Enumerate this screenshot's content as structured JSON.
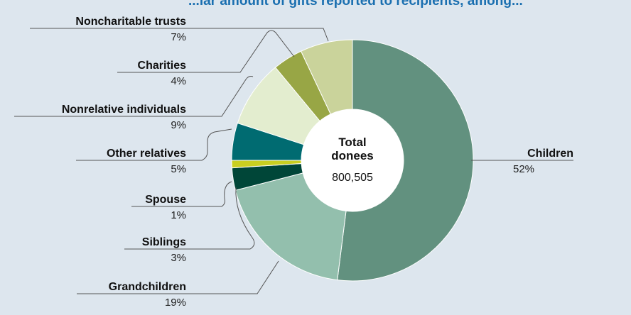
{
  "chart_data": {
    "type": "pie",
    "title": "...lar amount of gifts reported to recipients, among...",
    "center_label": {
      "title": "Total donees",
      "title_lines": [
        "Total",
        "donees"
      ],
      "total": "800,505"
    },
    "slices": [
      {
        "label": "Children",
        "percent": "52%",
        "value": 52,
        "color": "#62917f"
      },
      {
        "label": "Grandchildren",
        "percent": "19%",
        "value": 19,
        "color": "#93bfad"
      },
      {
        "label": "Siblings",
        "percent": "3%",
        "value": 3,
        "color": "#004638"
      },
      {
        "label": "Spouse",
        "percent": "1%",
        "value": 1,
        "color": "#c9cf21"
      },
      {
        "label": "Other relatives",
        "percent": "5%",
        "value": 5,
        "color": "#006b71"
      },
      {
        "label": "Nonrelative individuals",
        "percent": "9%",
        "value": 9,
        "color": "#e3edcf"
      },
      {
        "label": "Charities",
        "percent": "4%",
        "value": 4,
        "color": "#98a645"
      },
      {
        "label": "Noncharitable trusts",
        "percent": "7%",
        "value": 7,
        "color": "#cad39b"
      }
    ]
  },
  "colors": {
    "background": "#dde6ee",
    "title": "#1a6fb0",
    "leader": "#555555",
    "text": "#111111"
  }
}
